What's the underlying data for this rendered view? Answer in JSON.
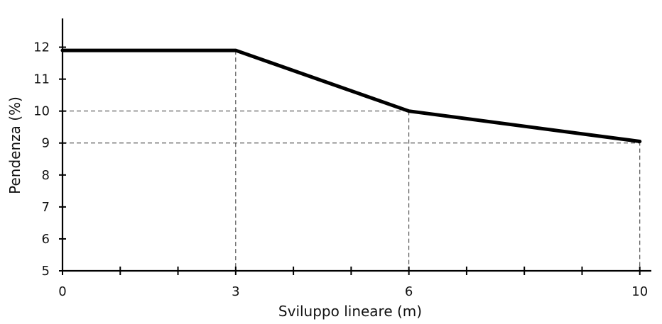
{
  "chart_data": {
    "type": "line",
    "title": "",
    "xlabel": "Sviluppo lineare (m)",
    "ylabel": "Pendenza (%)",
    "x": [
      0,
      3,
      6,
      10
    ],
    "series": [
      {
        "values": [
          11.9,
          11.9,
          10.0,
          9.05
        ]
      }
    ],
    "x_ticks": [
      0,
      3,
      6,
      10
    ],
    "x_tick_labels": [
      "0",
      "3",
      "6",
      "10"
    ],
    "x_minor_ticks": [
      1,
      2,
      4,
      5,
      7,
      8,
      9
    ],
    "y_ticks": [
      5,
      6,
      7,
      8,
      9,
      10,
      11,
      12
    ],
    "y_tick_labels": [
      "5",
      "6",
      "7",
      "8",
      "9",
      "10",
      "11",
      "12"
    ],
    "xlim": [
      0,
      10.2
    ],
    "ylim": [
      5,
      12.9
    ],
    "grid": false,
    "reference_lines": {
      "horizontal_at_y": [
        10,
        9
      ],
      "vertical_at_x": [
        3,
        6,
        10
      ]
    },
    "colors": {
      "line": "#000000",
      "axes": "#000000",
      "guides": "#333333"
    }
  }
}
